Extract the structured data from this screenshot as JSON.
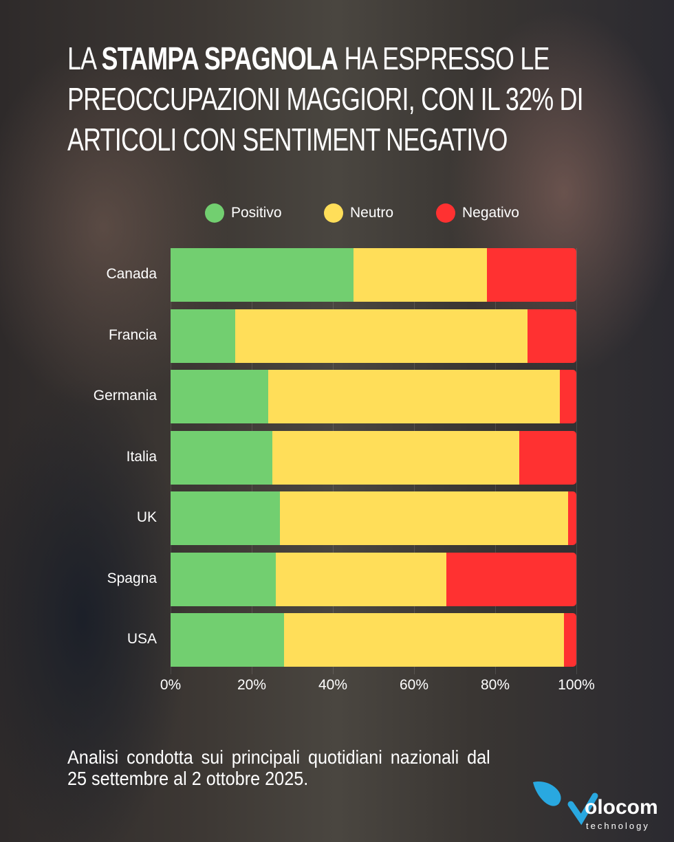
{
  "title": {
    "pre": "La ",
    "bold": "Stampa spagnola",
    "post": " ha espresso le preoccupazioni maggiori, con il 32% di articoli con sentiment negativo"
  },
  "chart_data": {
    "type": "bar",
    "orientation": "horizontal",
    "stacked": true,
    "normalized": true,
    "categories": [
      "Canada",
      "Francia",
      "Germania",
      "Italia",
      "UK",
      "Spagna",
      "USA"
    ],
    "series": [
      {
        "name": "Positivo",
        "color": "#72CF70",
        "values": [
          45,
          16,
          24,
          25,
          27,
          26,
          28
        ]
      },
      {
        "name": "Neutro",
        "color": "#FFDE59",
        "values": [
          33,
          72,
          72,
          61,
          71,
          42,
          69
        ]
      },
      {
        "name": "Negativo",
        "color": "#FF3131",
        "values": [
          22,
          12,
          4,
          14,
          2,
          32,
          3
        ]
      }
    ],
    "xlim": [
      0,
      100
    ],
    "xticks": [
      "0%",
      "20%",
      "40%",
      "60%",
      "80%",
      "100%"
    ],
    "legend_position": "top",
    "grid": true
  },
  "footnote": "Analisi condotta sui principali quotidiani nazionali dal 25 settembre al 2 ottobre 2025.",
  "logo": {
    "name": "olocom",
    "sub": "technology"
  }
}
